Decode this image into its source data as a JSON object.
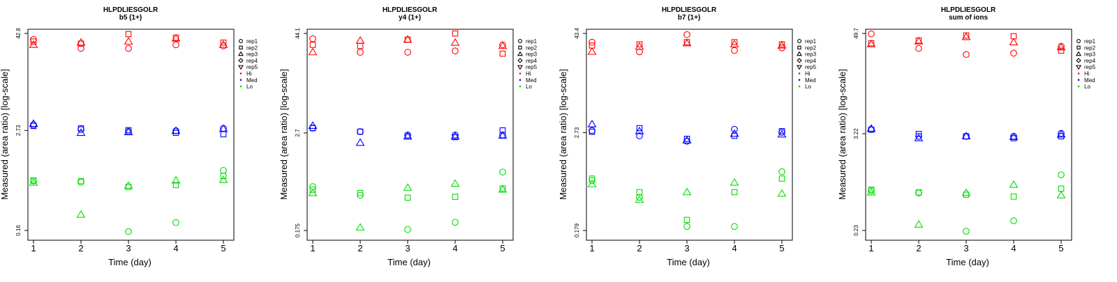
{
  "colors": {
    "Hi": "#ff0000",
    "Med": "#0000ff",
    "Lo": "#00dd00"
  },
  "chart_data": [
    {
      "type": "scatter",
      "title": "HLPDLIESGOLR",
      "subtitle": "b5 (1+)",
      "xlabel": "Time (day)",
      "ylabel": "Measured (area ratio) [log-scale]",
      "y_scale": "log",
      "x_ticks": [
        1,
        2,
        3,
        4,
        5
      ],
      "y_ticks": [
        0.16,
        2.73,
        42.8
      ],
      "y_tick_labels": [
        "0.16",
        "2.73",
        "42.8"
      ],
      "ylim": [
        0.16,
        42.8
      ],
      "legend_position": "top-right",
      "legend": {
        "reps": [
          "rep1",
          "rep2",
          "rep3",
          "rep4",
          "rep5"
        ],
        "groups": [
          "Hi",
          "Med",
          "Lo"
        ]
      },
      "series": [
        {
          "group": "Hi",
          "rep": "rep1",
          "x": [
            1,
            2,
            3,
            4,
            5
          ],
          "y": [
            36,
            28,
            28,
            31,
            30
          ]
        },
        {
          "group": "Hi",
          "rep": "rep2",
          "x": [
            1,
            2,
            3,
            4,
            5
          ],
          "y": [
            34,
            32,
            42,
            38,
            33
          ]
        },
        {
          "group": "Hi",
          "rep": "rep3",
          "x": [
            1,
            2,
            3,
            4,
            5
          ],
          "y": [
            31,
            33,
            34,
            37,
            31
          ]
        },
        {
          "group": "Med",
          "rep": "rep1",
          "x": [
            1,
            2,
            3,
            4,
            5
          ],
          "y": [
            3.2,
            2.8,
            2.65,
            2.7,
            2.9
          ]
        },
        {
          "group": "Med",
          "rep": "rep2",
          "x": [
            1,
            2,
            3,
            4,
            5
          ],
          "y": [
            3.1,
            2.9,
            2.75,
            2.55,
            2.45
          ]
        },
        {
          "group": "Med",
          "rep": "rep3",
          "x": [
            1,
            2,
            3,
            4,
            5
          ],
          "y": [
            3.3,
            2.55,
            2.6,
            2.7,
            2.85
          ]
        },
        {
          "group": "Lo",
          "rep": "rep1",
          "x": [
            1,
            2,
            3,
            4,
            5
          ],
          "y": [
            0.65,
            0.63,
            0.155,
            0.2,
            0.88
          ]
        },
        {
          "group": "Lo",
          "rep": "rep2",
          "x": [
            1,
            2,
            3,
            4,
            5
          ],
          "y": [
            0.66,
            0.65,
            0.55,
            0.58,
            0.75
          ]
        },
        {
          "group": "Lo",
          "rep": "rep3",
          "x": [
            1,
            2,
            3,
            4,
            5
          ],
          "y": [
            0.62,
            0.25,
            0.57,
            0.66,
            0.67
          ]
        }
      ]
    },
    {
      "type": "scatter",
      "title": "HLPDLIESGOLR",
      "subtitle": "y4 (1+)",
      "xlabel": "Time (day)",
      "ylabel": "Measured (area ratio) [log-scale]",
      "y_scale": "log",
      "x_ticks": [
        1,
        2,
        3,
        4,
        5
      ],
      "y_ticks": [
        0.175,
        2.7,
        44.1
      ],
      "y_tick_labels": [
        "0.175",
        "2.7",
        "44.1"
      ],
      "ylim": [
        0.175,
        44.1
      ],
      "legend_position": "top-right",
      "legend": {
        "reps": [
          "rep1",
          "rep2",
          "rep3",
          "rep4",
          "rep5"
        ],
        "groups": [
          "Hi",
          "Med",
          "Lo"
        ]
      },
      "series": [
        {
          "group": "Hi",
          "rep": "rep1",
          "x": [
            1,
            2,
            3,
            4,
            5
          ],
          "y": [
            38,
            26,
            26,
            27,
            32
          ]
        },
        {
          "group": "Hi",
          "rep": "rep2",
          "x": [
            1,
            2,
            3,
            4,
            5
          ],
          "y": [
            32,
            31,
            37,
            44,
            25
          ]
        },
        {
          "group": "Hi",
          "rep": "rep3",
          "x": [
            1,
            2,
            3,
            4,
            5
          ],
          "y": [
            26,
            36,
            37,
            34,
            31
          ]
        },
        {
          "group": "Med",
          "rep": "rep1",
          "x": [
            1,
            2,
            3,
            4,
            5
          ],
          "y": [
            3.1,
            2.8,
            2.55,
            2.55,
            2.55
          ]
        },
        {
          "group": "Med",
          "rep": "rep2",
          "x": [
            1,
            2,
            3,
            4,
            5
          ],
          "y": [
            3.1,
            2.8,
            2.45,
            2.4,
            2.9
          ]
        },
        {
          "group": "Med",
          "rep": "rep3",
          "x": [
            1,
            2,
            3,
            4,
            5
          ],
          "y": [
            3.3,
            2.05,
            2.45,
            2.45,
            2.5
          ]
        },
        {
          "group": "Lo",
          "rep": "rep1",
          "x": [
            1,
            2,
            3,
            4,
            5
          ],
          "y": [
            0.6,
            0.47,
            0.18,
            0.22,
            0.9
          ]
        },
        {
          "group": "Lo",
          "rep": "rep2",
          "x": [
            1,
            2,
            3,
            4,
            5
          ],
          "y": [
            0.55,
            0.5,
            0.44,
            0.45,
            0.57
          ]
        },
        {
          "group": "Lo",
          "rep": "rep3",
          "x": [
            1,
            2,
            3,
            4,
            5
          ],
          "y": [
            0.5,
            0.19,
            0.58,
            0.65,
            0.55
          ]
        }
      ]
    },
    {
      "type": "scatter",
      "title": "HLPDLIESGOLR",
      "subtitle": "b7 (1+)",
      "xlabel": "Time (day)",
      "ylabel": "Measured (area ratio) [log-scale]",
      "y_scale": "log",
      "x_ticks": [
        1,
        2,
        3,
        4,
        5
      ],
      "y_ticks": [
        0.179,
        2.73,
        43.4
      ],
      "y_tick_labels": [
        "0.179",
        "2.73",
        "43.4"
      ],
      "ylim": [
        0.179,
        43.4
      ],
      "legend_position": "top-right",
      "legend": {
        "reps": [
          "rep1",
          "rep2",
          "rep3",
          "rep4",
          "rep5"
        ],
        "groups": [
          "Hi",
          "Med",
          "Lo"
        ]
      },
      "series": [
        {
          "group": "Hi",
          "rep": "rep1",
          "x": [
            1,
            2,
            3,
            4,
            5
          ],
          "y": [
            34,
            26,
            42,
            27,
            29
          ]
        },
        {
          "group": "Hi",
          "rep": "rep2",
          "x": [
            1,
            2,
            3,
            4,
            5
          ],
          "y": [
            31,
            32,
            34,
            34,
            32
          ]
        },
        {
          "group": "Hi",
          "rep": "rep3",
          "x": [
            1,
            2,
            3,
            4,
            5
          ],
          "y": [
            26,
            30,
            33,
            32,
            31
          ]
        },
        {
          "group": "Med",
          "rep": "rep1",
          "x": [
            1,
            2,
            3,
            4,
            5
          ],
          "y": [
            2.9,
            2.5,
            2.15,
            3.0,
            2.75
          ]
        },
        {
          "group": "Med",
          "rep": "rep2",
          "x": [
            1,
            2,
            3,
            4,
            5
          ],
          "y": [
            2.8,
            3.1,
            2.3,
            2.5,
            2.85
          ]
        },
        {
          "group": "Med",
          "rep": "rep3",
          "x": [
            1,
            2,
            3,
            4,
            5
          ],
          "y": [
            3.45,
            2.85,
            2.2,
            2.65,
            2.6
          ]
        },
        {
          "group": "Lo",
          "rep": "rep1",
          "x": [
            1,
            2,
            3,
            4,
            5
          ],
          "y": [
            0.72,
            0.45,
            0.2,
            0.2,
            0.92
          ]
        },
        {
          "group": "Lo",
          "rep": "rep2",
          "x": [
            1,
            2,
            3,
            4,
            5
          ],
          "y": [
            0.76,
            0.52,
            0.24,
            0.52,
            0.76
          ]
        },
        {
          "group": "Lo",
          "rep": "rep3",
          "x": [
            1,
            2,
            3,
            4,
            5
          ],
          "y": [
            0.65,
            0.42,
            0.52,
            0.68,
            0.5
          ]
        }
      ]
    },
    {
      "type": "scatter",
      "title": "HLPDLIESGOLR",
      "subtitle": "sum of ions",
      "xlabel": "Time (day)",
      "ylabel": "Measured (area ratio) [log-scale]",
      "y_scale": "log",
      "x_ticks": [
        1,
        2,
        3,
        4,
        5
      ],
      "y_ticks": [
        0.23,
        3.22,
        49.7
      ],
      "y_tick_labels": [
        "0.23",
        "3.22",
        "49.7"
      ],
      "ylim": [
        0.23,
        49.7
      ],
      "legend_position": "top-right",
      "legend": {
        "reps": [
          "rep1",
          "rep2",
          "rep3",
          "rep4",
          "rep5"
        ],
        "groups": [
          "Hi",
          "Med",
          "Lo"
        ]
      },
      "series": [
        {
          "group": "Hi",
          "rep": "rep1",
          "x": [
            1,
            2,
            3,
            4,
            5
          ],
          "y": [
            49,
            33,
            28,
            29,
            35
          ]
        },
        {
          "group": "Hi",
          "rep": "rep2",
          "x": [
            1,
            2,
            3,
            4,
            5
          ],
          "y": [
            38,
            41,
            47,
            46,
            31
          ]
        },
        {
          "group": "Hi",
          "rep": "rep3",
          "x": [
            1,
            2,
            3,
            4,
            5
          ],
          "y": [
            37,
            40,
            45,
            39,
            34
          ]
        },
        {
          "group": "Med",
          "rep": "rep1",
          "x": [
            1,
            2,
            3,
            4,
            5
          ],
          "y": [
            3.6,
            3.0,
            3.0,
            3.0,
            3.25
          ]
        },
        {
          "group": "Med",
          "rep": "rep2",
          "x": [
            1,
            2,
            3,
            4,
            5
          ],
          "y": [
            3.6,
            3.2,
            3.0,
            2.85,
            3.0
          ]
        },
        {
          "group": "Med",
          "rep": "rep3",
          "x": [
            1,
            2,
            3,
            4,
            5
          ],
          "y": [
            3.7,
            2.85,
            3.0,
            2.95,
            3.15
          ]
        },
        {
          "group": "Lo",
          "rep": "rep1",
          "x": [
            1,
            2,
            3,
            4,
            5
          ],
          "y": [
            0.68,
            0.64,
            0.225,
            0.3,
            1.05
          ]
        },
        {
          "group": "Lo",
          "rep": "rep2",
          "x": [
            1,
            2,
            3,
            4,
            5
          ],
          "y": [
            0.7,
            0.65,
            0.61,
            0.58,
            0.72
          ]
        },
        {
          "group": "Lo",
          "rep": "rep3",
          "x": [
            1,
            2,
            3,
            4,
            5
          ],
          "y": [
            0.65,
            0.27,
            0.64,
            0.8,
            0.6
          ]
        }
      ]
    }
  ]
}
